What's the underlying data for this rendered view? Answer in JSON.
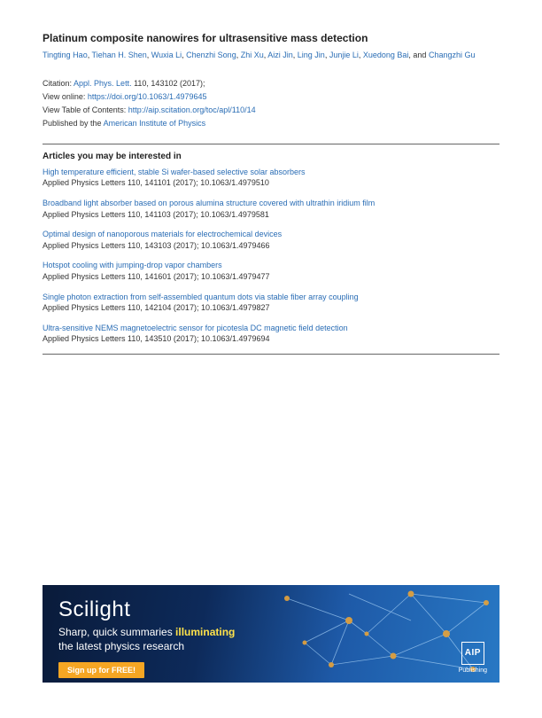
{
  "title": "Platinum composite nanowires for ultrasensitive mass detection",
  "authors": [
    "Tingting Hao",
    "Tiehan H. Shen",
    "Wuxia Li",
    "Chenzhi Song",
    "Zhi Xu",
    "Aizi Jin",
    "Ling Jin",
    "Junjie Li",
    "Xuedong Bai",
    "Changzhi Gu"
  ],
  "citation": {
    "prefix": "Citation: ",
    "journal_link": "Appl. Phys. Lett.",
    "volume_pages": " 110, 143102 (2017);",
    "view_online_label": "View online: ",
    "view_online_url": "https://doi.org/10.1063/1.4979645",
    "toc_label": "View Table of Contents: ",
    "toc_url": "http://aip.scitation.org/toc/apl/110/14",
    "published_label": "Published by the ",
    "publisher": "American Institute of Physics"
  },
  "interest_heading": "Articles you may be interested in",
  "related": [
    {
      "title": "High temperature efficient, stable Si wafer-based selective solar absorbers",
      "meta": "Applied Physics Letters 110, 141101 (2017); 10.1063/1.4979510"
    },
    {
      "title": " Broadband light absorber based on porous alumina structure covered with ultrathin iridium film",
      "meta": "Applied Physics Letters 110, 141103 (2017); 10.1063/1.4979581"
    },
    {
      "title": " Optimal design of nanoporous materials for electrochemical devices",
      "meta": "Applied Physics Letters 110, 143103 (2017); 10.1063/1.4979466"
    },
    {
      "title": " Hotspot cooling with jumping-drop vapor chambers",
      "meta": "Applied Physics Letters 110, 141601 (2017); 10.1063/1.4979477"
    },
    {
      "title": " Single photon extraction from self-assembled quantum dots via stable fiber array coupling",
      "meta": "Applied Physics Letters 110, 142104 (2017); 10.1063/1.4979827"
    },
    {
      "title": "Ultra-sensitive NEMS magnetoelectric sensor for picotesla DC magnetic field detection",
      "meta": "Applied Physics Letters 110, 143510 (2017); 10.1063/1.4979694"
    }
  ],
  "banner": {
    "brand": "Scilight",
    "tagline_a": "Sharp, quick summaries ",
    "tagline_hl": "illuminating",
    "tagline_b": "the latest physics research",
    "cta": "Sign up for FREE!",
    "aip_text": "AIP",
    "aip_sub": "Publishing",
    "bg_gradient": [
      "#0a1b3a",
      "#0d2a5a",
      "#1e5aa8",
      "#2878c4"
    ],
    "cta_bg": "#f5a623",
    "hl_color": "#ffe24a",
    "network_line_color": "#9cc8f0",
    "network_node_color": "#e8a43a"
  },
  "colors": {
    "link": "#2a6db5",
    "text": "#333333",
    "rule": "#666666"
  },
  "typography": {
    "title_fontsize": 12,
    "body_fontsize": 9,
    "heading_fontsize": 10,
    "banner_brand_fontsize": 24,
    "banner_tagline_fontsize": 12
  }
}
